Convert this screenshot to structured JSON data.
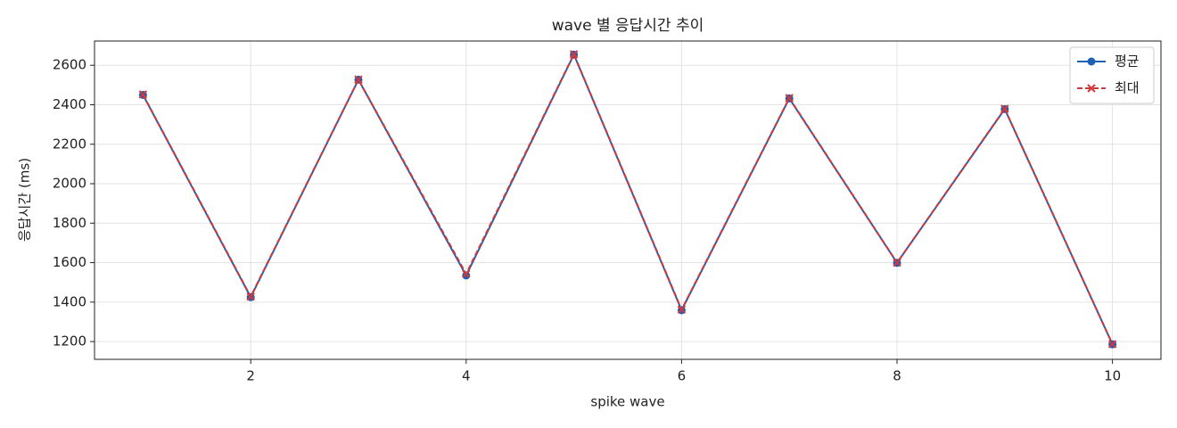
{
  "chart_data": {
    "type": "line",
    "title": "wave 별 응답시간 추이",
    "x_label": "spike wave",
    "y_label": "응답시간 (ms)",
    "x": [
      1,
      2,
      3,
      4,
      5,
      6,
      7,
      8,
      9,
      10
    ],
    "series": [
      {
        "name": "평균",
        "color": "#1f5fb4",
        "marker": "circle",
        "linestyle": "solid",
        "values": [
          2450,
          1425,
          2527,
          1535,
          2654,
          1359,
          2432,
          1599,
          2378,
          1186
        ]
      },
      {
        "name": "최대",
        "color": "#d0393b",
        "marker": "x",
        "linestyle": "dashed",
        "values": [
          2452,
          1428,
          2528,
          1543,
          2656,
          1362,
          2434,
          1600,
          2380,
          1187
        ]
      }
    ],
    "xlim": [
      0.55,
      10.45
    ],
    "ylim": [
      1110,
      2723
    ],
    "xticks": [
      2,
      4,
      6,
      8,
      10
    ],
    "yticks": [
      1200,
      1400,
      1600,
      1800,
      2000,
      2200,
      2400,
      2600
    ],
    "grid": true,
    "legend": "upper right"
  }
}
